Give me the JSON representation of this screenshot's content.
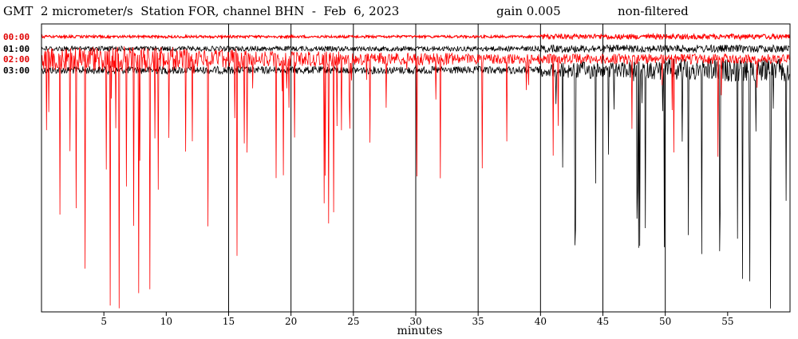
{
  "header": {
    "title": "GMT  2 micrometer/s  Station FOR, channel BHN  -  Feb  6, 2023",
    "gain": "gain 0.005",
    "filter": "non-filtered"
  },
  "colors": {
    "red": "#ff0000",
    "black": "#000000",
    "dark_red": "#cc0000"
  },
  "chart_data": {
    "type": "line",
    "title": "GMT  2 micrometer/s  Station FOR, channel BHN  -  Feb  6, 2023",
    "xlabel": "minutes",
    "ylabel": "",
    "xlim": [
      0,
      60
    ],
    "x_ticks": [
      5,
      10,
      15,
      20,
      25,
      30,
      35,
      40,
      45,
      50,
      55
    ],
    "vertical_gridlines_at": [
      15,
      20,
      25,
      30,
      35,
      40,
      45,
      50
    ],
    "grid": "vertical",
    "series": [
      {
        "name": "00:00",
        "color": "#ff0000",
        "activity_by_minute": [
          1,
          1,
          1,
          1,
          1,
          1,
          1,
          1,
          1,
          1,
          1,
          1,
          1,
          1,
          1,
          1,
          1,
          1,
          1,
          1,
          1,
          1,
          1,
          1,
          1,
          1,
          1,
          1,
          1,
          1,
          1,
          1,
          1,
          1,
          1,
          1,
          1,
          1,
          1,
          1,
          2,
          2,
          2,
          2,
          2,
          2,
          2,
          2,
          2,
          2,
          2,
          2,
          2,
          2,
          2,
          2,
          2,
          2,
          2,
          2
        ]
      },
      {
        "name": "01:00",
        "color": "#000000",
        "activity_by_minute": [
          2,
          2,
          2,
          2,
          2,
          2,
          2,
          2,
          2,
          2,
          2,
          2,
          2,
          2,
          2,
          2,
          2,
          2,
          2,
          2,
          2,
          2,
          2,
          2,
          2,
          2,
          2,
          2,
          2,
          2,
          2,
          2,
          2,
          2,
          2,
          2,
          2,
          2,
          2,
          2,
          3,
          3,
          3,
          3,
          3,
          3,
          3,
          3,
          3,
          3,
          3,
          3,
          3,
          3,
          3,
          3,
          3,
          3,
          3,
          3
        ]
      },
      {
        "name": "02:00",
        "color": "#ff0000",
        "activity_by_minute": [
          9,
          9,
          9,
          9,
          10,
          10,
          10,
          10,
          10,
          10,
          10,
          8,
          7,
          7,
          8,
          8,
          7,
          6,
          6,
          6,
          6,
          6,
          6,
          6,
          5,
          5,
          5,
          5,
          5,
          5,
          5,
          5,
          5,
          4,
          4,
          4,
          4,
          4,
          4,
          4,
          4,
          4,
          4,
          4,
          4,
          4,
          4,
          4,
          4,
          4,
          4,
          4,
          4,
          4,
          4,
          4,
          4,
          4,
          4,
          4
        ]
      },
      {
        "name": "03:00",
        "color": "#000000",
        "activity_by_minute": [
          3,
          3,
          3,
          3,
          3,
          3,
          3,
          3,
          3,
          3,
          3,
          3,
          3,
          3,
          3,
          3,
          3,
          3,
          3,
          3,
          3,
          3,
          3,
          3,
          3,
          3,
          3,
          3,
          3,
          3,
          3,
          3,
          3,
          3,
          3,
          3,
          3,
          3,
          3,
          3,
          5,
          6,
          7,
          7,
          7,
          6,
          6,
          7,
          7,
          8,
          9,
          9,
          9,
          9,
          9,
          9,
          9,
          9,
          9,
          9
        ]
      }
    ]
  }
}
